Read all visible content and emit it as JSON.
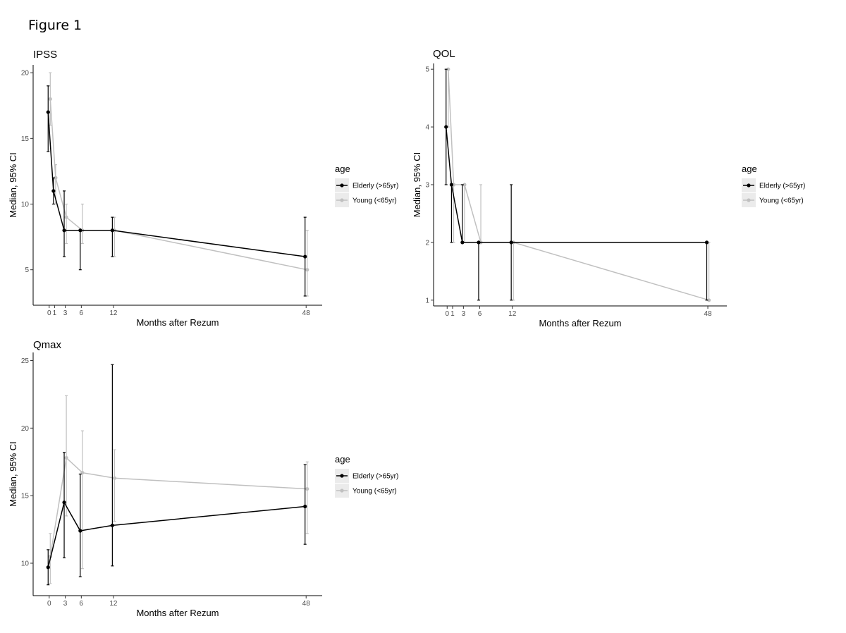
{
  "figure_title": "Figure 1",
  "colors": {
    "elderly": "#000000",
    "young": "#c0c0c0",
    "legend_key_bg": "#ebebeb"
  },
  "chart_data": [
    {
      "type": "line",
      "title": "IPSS",
      "xlabel": "Months after Rezum",
      "ylabel": "Median, 95% CI",
      "x_ticks": [
        0,
        1,
        3,
        6,
        12,
        48
      ],
      "y_ticks": [
        5,
        10,
        15,
        20
      ],
      "xlim": [
        -3,
        51
      ],
      "ylim": [
        2.3,
        20.6
      ],
      "grid": false,
      "legend": {
        "title": "age",
        "position": "right",
        "entries": [
          "Elderly (>65yr)",
          "Young (<65yr)"
        ]
      },
      "series": [
        {
          "name": "Elderly (>65yr)",
          "x": [
            0,
            1,
            3,
            6,
            12,
            48
          ],
          "y": [
            17,
            11,
            8,
            8,
            8,
            6
          ],
          "lower": [
            14,
            10,
            6,
            5,
            6,
            3
          ],
          "upper": [
            19,
            12,
            11,
            8,
            9,
            9
          ]
        },
        {
          "name": "Young (<65yr)",
          "x": [
            0,
            1,
            3,
            6,
            12,
            48
          ],
          "y": [
            18,
            12,
            9,
            8,
            8,
            5
          ],
          "lower": [
            16,
            10,
            7,
            7,
            6,
            3
          ],
          "upper": [
            20,
            13,
            10,
            10,
            9,
            8
          ]
        }
      ]
    },
    {
      "type": "line",
      "title": "QOL",
      "xlabel": "Months after Rezum",
      "ylabel": "Median, 95% CI",
      "x_ticks": [
        0,
        1,
        3,
        6,
        12,
        48
      ],
      "y_ticks": [
        1,
        2,
        3,
        4,
        5
      ],
      "xlim": [
        -2.5,
        51.5
      ],
      "ylim": [
        0.9,
        5.1
      ],
      "grid": false,
      "legend": {
        "title": "age",
        "position": "right",
        "entries": [
          "Elderly (>65yr)",
          "Young (<65yr)"
        ]
      },
      "series": [
        {
          "name": "Elderly (>65yr)",
          "x": [
            0,
            1,
            3,
            6,
            12,
            48
          ],
          "y": [
            4,
            3,
            2,
            2,
            2,
            2
          ],
          "lower": [
            3,
            2,
            2,
            1,
            1,
            1
          ],
          "upper": [
            5,
            3,
            3,
            2,
            3,
            2
          ]
        },
        {
          "name": "Young (<65yr)",
          "x": [
            0,
            1,
            3,
            6,
            12,
            48
          ],
          "y": [
            5,
            3,
            3,
            2,
            2,
            1
          ],
          "lower": [
            4,
            2,
            2,
            2,
            1,
            1
          ],
          "upper": [
            5,
            3,
            3,
            3,
            2,
            2
          ]
        }
      ]
    },
    {
      "type": "line",
      "title": "Qmax",
      "xlabel": "Months after Rezum",
      "ylabel": "Median, 95% CI",
      "x_ticks": [
        0,
        3,
        6,
        12,
        48
      ],
      "y_ticks": [
        10,
        15,
        20,
        25
      ],
      "xlim": [
        -3,
        51
      ],
      "ylim": [
        7.6,
        25.6
      ],
      "grid": false,
      "legend": {
        "title": "age",
        "position": "right",
        "entries": [
          "Elderly (>65yr)",
          "Young (<65yr)"
        ]
      },
      "series": [
        {
          "name": "Elderly (>65yr)",
          "x": [
            0,
            3,
            6,
            12,
            48
          ],
          "y": [
            9.7,
            14.5,
            12.4,
            12.8,
            14.2
          ],
          "lower": [
            8.4,
            10.4,
            9.0,
            9.8,
            11.4
          ],
          "upper": [
            11.0,
            18.2,
            16.6,
            24.7,
            17.3
          ]
        },
        {
          "name": "Young (<65yr)",
          "x": [
            0,
            3,
            6,
            12,
            48
          ],
          "y": [
            10.5,
            17.8,
            16.7,
            16.3,
            15.5
          ],
          "lower": [
            8.5,
            13.5,
            9.6,
            13.1,
            12.2
          ],
          "upper": [
            12.2,
            22.4,
            19.8,
            18.4,
            17.5
          ]
        }
      ]
    }
  ]
}
